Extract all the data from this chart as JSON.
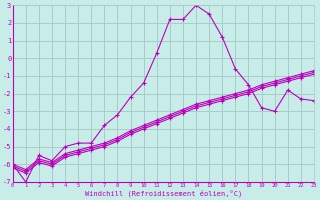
{
  "xlabel": "Windchill (Refroidissement éolien,°C)",
  "xlim": [
    0,
    23
  ],
  "ylim": [
    -7,
    3
  ],
  "yticks": [
    -7,
    -6,
    -5,
    -4,
    -3,
    -2,
    -1,
    0,
    1,
    2,
    3
  ],
  "xticks": [
    0,
    1,
    2,
    3,
    4,
    5,
    6,
    7,
    8,
    9,
    10,
    11,
    12,
    13,
    14,
    15,
    16,
    17,
    18,
    19,
    20,
    21,
    22,
    23
  ],
  "background_color": "#c8ece8",
  "grid_color": "#a8ccc8",
  "line_color": "#bb00bb",
  "line1_y": [
    -6.0,
    -7.0,
    -5.5,
    -5.8,
    -5.0,
    -4.8,
    -4.8,
    -3.8,
    -3.2,
    -2.2,
    -1.4,
    0.3,
    2.2,
    2.2,
    3.0,
    2.5,
    1.2,
    -0.6,
    -1.5,
    -2.8,
    -3.0,
    -1.8,
    -2.3,
    -2.4
  ],
  "line2_y": [
    -6.0,
    -6.3,
    -5.7,
    -5.9,
    -5.4,
    -5.2,
    -5.0,
    -4.8,
    -4.5,
    -4.1,
    -3.8,
    -3.5,
    -3.2,
    -2.9,
    -2.6,
    -2.4,
    -2.2,
    -2.0,
    -1.8,
    -1.5,
    -1.3,
    -1.1,
    -0.9,
    -0.7
  ],
  "line3_y": [
    -6.1,
    -6.4,
    -5.8,
    -6.0,
    -5.5,
    -5.3,
    -5.1,
    -4.9,
    -4.6,
    -4.2,
    -3.9,
    -3.6,
    -3.3,
    -3.0,
    -2.7,
    -2.5,
    -2.3,
    -2.1,
    -1.9,
    -1.6,
    -1.4,
    -1.2,
    -1.0,
    -0.8
  ],
  "line4_y": [
    -6.2,
    -6.5,
    -5.9,
    -6.1,
    -5.6,
    -5.4,
    -5.2,
    -5.0,
    -4.7,
    -4.3,
    -4.0,
    -3.7,
    -3.4,
    -3.1,
    -2.8,
    -2.6,
    -2.4,
    -2.2,
    -2.0,
    -1.7,
    -1.5,
    -1.3,
    -1.1,
    -0.9
  ]
}
